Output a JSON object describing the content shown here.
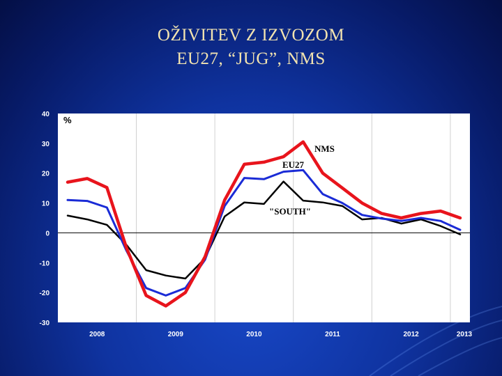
{
  "slide": {
    "title_line1": "OŽIVITEV Z IZVOZOM",
    "title_line2": "EU27, “JUG”, NMS"
  },
  "colors": {
    "nms": "#e8141c",
    "eu27": "#1a2bd6",
    "south": "#000000",
    "title": "#f2e3b0"
  },
  "chart_data": {
    "type": "line",
    "ylabel": "%",
    "ylim": [
      -30,
      40
    ],
    "yticks": [
      40,
      30,
      20,
      10,
      0,
      -10,
      -20,
      -30
    ],
    "x_quarters": [
      "2008Q1",
      "2008Q2",
      "2008Q3",
      "2008Q4",
      "2009Q1",
      "2009Q2",
      "2009Q3",
      "2009Q4",
      "2010Q1",
      "2010Q2",
      "2010Q3",
      "2010Q4",
      "2011Q1",
      "2011Q2",
      "2011Q3",
      "2011Q4",
      "2012Q1",
      "2012Q2",
      "2012Q3",
      "2012Q4",
      "2013Q1"
    ],
    "year_labels": [
      "2008",
      "2009",
      "2010",
      "2011",
      "2012",
      "2013"
    ],
    "grid": true,
    "series": [
      {
        "key": "nms",
        "name": "NMS",
        "values": [
          17,
          18.2,
          15.2,
          -5,
          -21,
          -24.5,
          -20,
          -8,
          11,
          23,
          23.7,
          25.5,
          30.5,
          20,
          15,
          10,
          6.5,
          5,
          6.5,
          7.3,
          5
        ]
      },
      {
        "key": "eu27",
        "name": "EU27",
        "values": [
          11,
          10.7,
          8.5,
          -6,
          -18.5,
          -21,
          -18.5,
          -9,
          9,
          18.4,
          18,
          20.5,
          21,
          13,
          10,
          6,
          4.8,
          4,
          5,
          4,
          1
        ]
      },
      {
        "key": "south",
        "name": "\"SOUTH\"",
        "values": [
          5.8,
          4.5,
          2.7,
          -4,
          -12.5,
          -14.3,
          -15.3,
          -8.5,
          5.5,
          10.2,
          9.7,
          17.2,
          10.8,
          10.2,
          9,
          4.5,
          5,
          3.1,
          4.5,
          2.3,
          -0.5
        ]
      }
    ]
  }
}
